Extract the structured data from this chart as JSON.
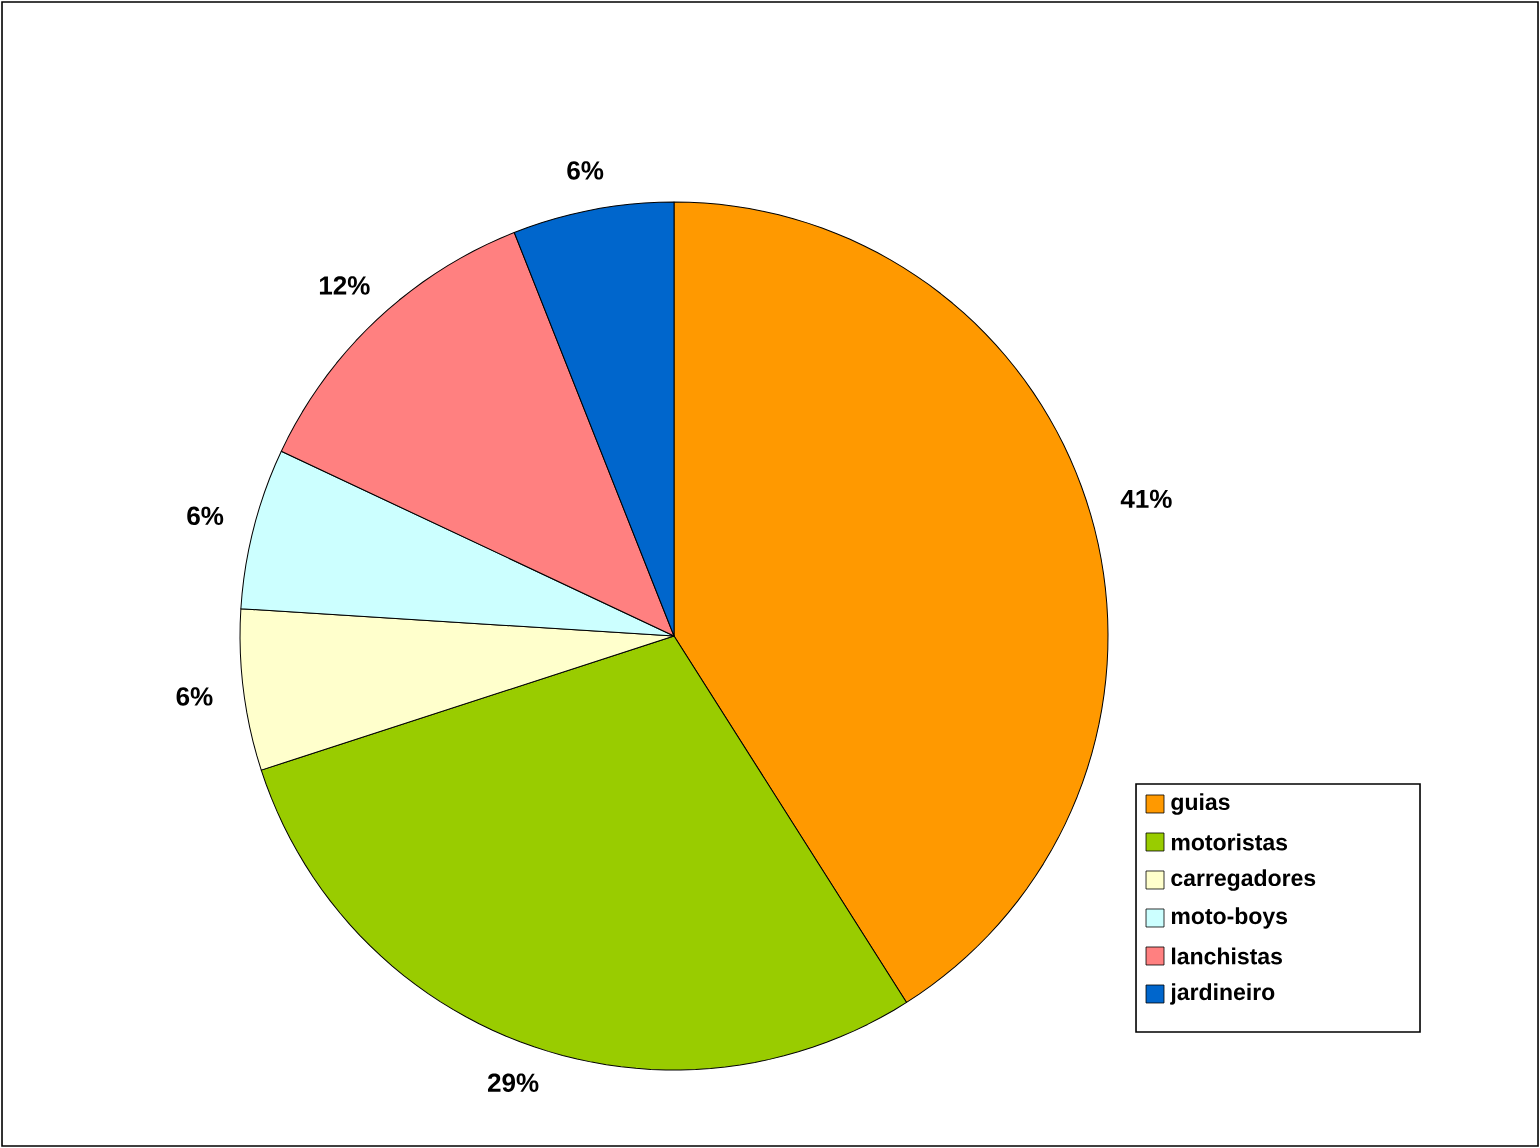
{
  "chart_data": {
    "type": "pie",
    "categories": [
      "guias",
      "motoristas",
      "carregadores",
      "moto-boys",
      "lanchistas",
      "jardineiro"
    ],
    "values": [
      41,
      29,
      6,
      6,
      12,
      6
    ],
    "value_labels": [
      "41%",
      "29%",
      "6%",
      "6%",
      "12%",
      "6%"
    ],
    "colors": [
      "#ff9900",
      "#99cc00",
      "#ffffcc",
      "#ccffff",
      "#ff8080",
      "#0066cc"
    ],
    "legend": "bottom right"
  }
}
